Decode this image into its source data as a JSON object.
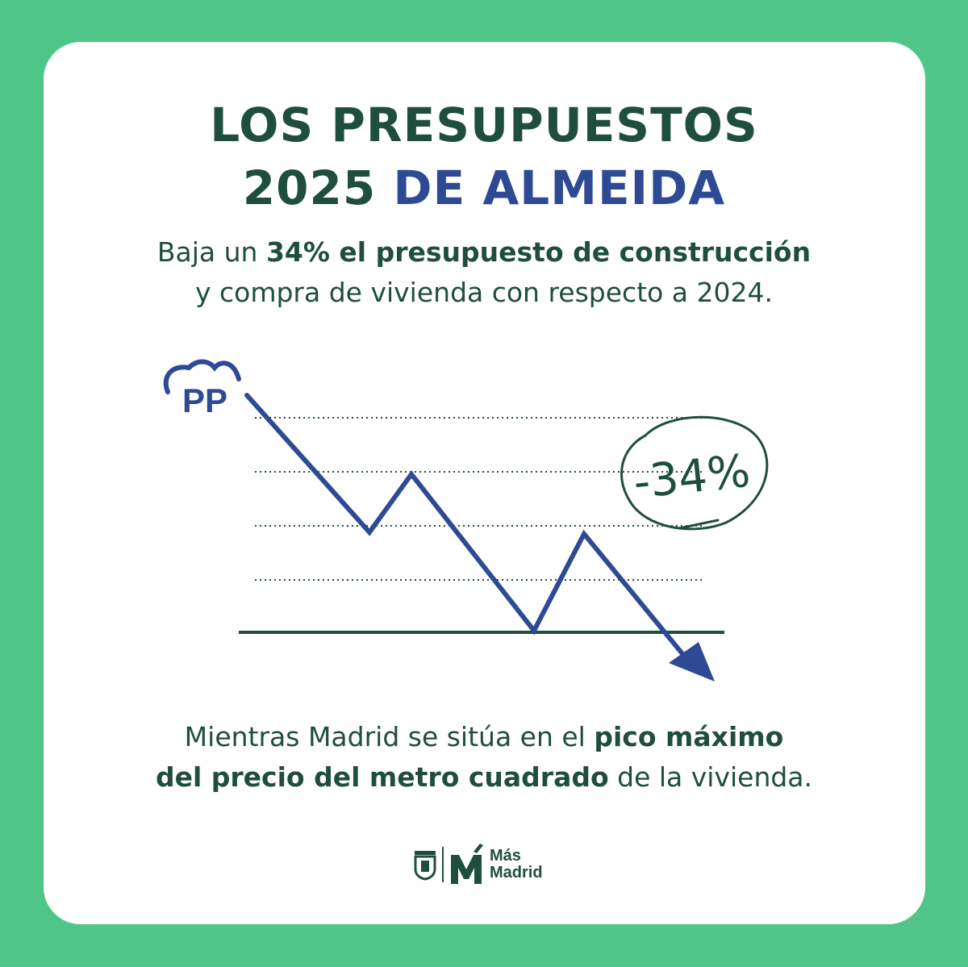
{
  "title": {
    "line1": "LOS PRESUPUESTOS",
    "line2_a": "2025 ",
    "line2_b": "DE ALMEIDA"
  },
  "subtitle": {
    "a": "Baja un ",
    "b": "34% el presupuesto de construcción",
    "c": "y compra de vivienda con respecto a 2024."
  },
  "chart": {
    "logo_text": "PP",
    "annotation": "-34%"
  },
  "footer": {
    "a": "Mientras Madrid se sitúa en el ",
    "b": "pico máximo",
    "c": "del precio del metro cuadrado",
    "d": " de la vivienda."
  },
  "brand": {
    "line1": "Más",
    "line2": "Madrid"
  },
  "colors": {
    "background": "#4fc687",
    "dark_green": "#1f4e3d",
    "blue": "#2e4a95",
    "card": "#ffffff"
  },
  "icons": [
    "pp-logo-icon",
    "madrid-crest-icon",
    "mas-madrid-m-icon"
  ]
}
